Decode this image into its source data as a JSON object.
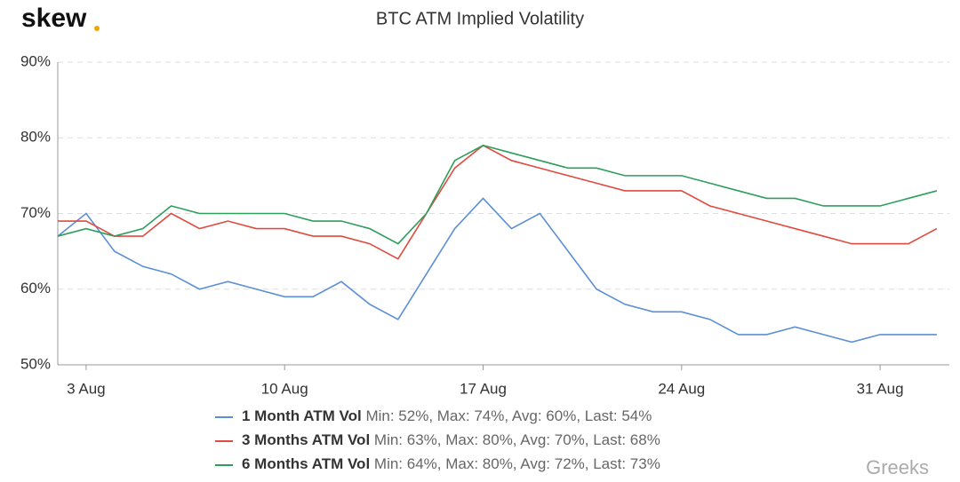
{
  "brand": "skew",
  "watermark": "Greeks",
  "chart_data": {
    "type": "line",
    "title": "BTC ATM Implied Volatility",
    "categories": [
      null,
      "3 Aug",
      null,
      null,
      null,
      null,
      null,
      null,
      "10 Aug",
      null,
      null,
      null,
      null,
      null,
      null,
      "17 Aug",
      null,
      null,
      null,
      null,
      null,
      null,
      "24 Aug",
      null,
      null,
      null,
      null,
      null,
      null,
      "31 Aug",
      null,
      null
    ],
    "series": [
      {
        "name": "1 Month ATM Vol",
        "stats": "Min: 52%, Max: 74%, Avg: 60%, Last: 54%",
        "color": "#5b8fd6",
        "values": [
          67,
          70,
          65,
          63,
          62,
          60,
          61,
          60,
          59,
          59,
          61,
          58,
          56,
          62,
          68,
          72,
          68,
          70,
          65,
          60,
          58,
          57,
          57,
          56,
          54,
          54,
          55,
          54,
          53,
          54,
          54,
          54
        ]
      },
      {
        "name": "3 Months ATM Vol",
        "stats": "Min: 63%, Max: 80%, Avg: 70%, Last: 68%",
        "color": "#e04a3f",
        "values": [
          69,
          69,
          67,
          67,
          70,
          68,
          69,
          68,
          68,
          67,
          67,
          66,
          64,
          70,
          76,
          79,
          77,
          76,
          75,
          74,
          73,
          73,
          73,
          71,
          70,
          69,
          68,
          67,
          66,
          66,
          66,
          68
        ]
      },
      {
        "name": "6 Months ATM Vol",
        "stats": "Min: 64%, Max: 80%, Avg: 72%, Last: 73%",
        "color": "#2e9e5b",
        "values": [
          67,
          68,
          67,
          68,
          71,
          70,
          70,
          70,
          70,
          69,
          69,
          68,
          66,
          70,
          77,
          79,
          78,
          77,
          76,
          76,
          75,
          75,
          75,
          74,
          73,
          72,
          72,
          71,
          71,
          71,
          72,
          73
        ]
      }
    ],
    "ylim": [
      50,
      90
    ],
    "yticks": [
      {
        "value": 50,
        "label": "50%"
      },
      {
        "value": 60,
        "label": "60%"
      },
      {
        "value": 70,
        "label": "70%"
      },
      {
        "value": 80,
        "label": "80%"
      },
      {
        "value": 90,
        "label": "90%"
      }
    ],
    "grid": true
  }
}
